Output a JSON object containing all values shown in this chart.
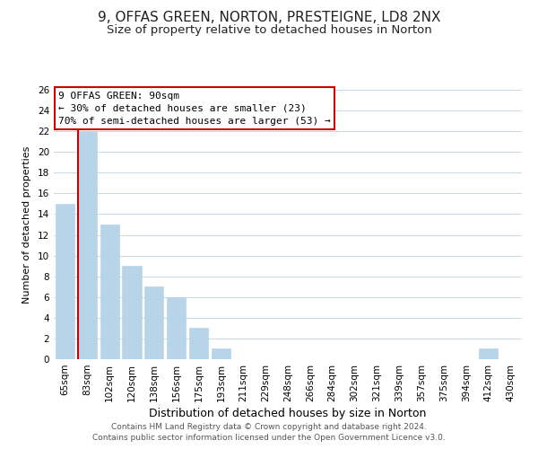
{
  "title": "9, OFFAS GREEN, NORTON, PRESTEIGNE, LD8 2NX",
  "subtitle": "Size of property relative to detached houses in Norton",
  "xlabel": "Distribution of detached houses by size in Norton",
  "ylabel": "Number of detached properties",
  "bar_labels": [
    "65sqm",
    "83sqm",
    "102sqm",
    "120sqm",
    "138sqm",
    "156sqm",
    "175sqm",
    "193sqm",
    "211sqm",
    "229sqm",
    "248sqm",
    "266sqm",
    "284sqm",
    "302sqm",
    "321sqm",
    "339sqm",
    "357sqm",
    "375sqm",
    "394sqm",
    "412sqm",
    "430sqm"
  ],
  "bar_values": [
    15,
    22,
    13,
    9,
    7,
    6,
    3,
    1,
    0,
    0,
    0,
    0,
    0,
    0,
    0,
    0,
    0,
    0,
    0,
    1,
    0
  ],
  "bar_color": "#b8d4e8",
  "bar_edge_color": "#b8d4e8",
  "vline_index": 1,
  "vline_color": "#cc0000",
  "ylim": [
    0,
    26
  ],
  "yticks": [
    0,
    2,
    4,
    6,
    8,
    10,
    12,
    14,
    16,
    18,
    20,
    22,
    24,
    26
  ],
  "annotation_title": "9 OFFAS GREEN: 90sqm",
  "annotation_line1": "← 30% of detached houses are smaller (23)",
  "annotation_line2": "70% of semi-detached houses are larger (53) →",
  "annotation_box_color": "#ffffff",
  "annotation_box_edge_color": "#cc0000",
  "footer_line1": "Contains HM Land Registry data © Crown copyright and database right 2024.",
  "footer_line2": "Contains public sector information licensed under the Open Government Licence v3.0.",
  "background_color": "#ffffff",
  "grid_color": "#c8d8e8",
  "title_fontsize": 11,
  "subtitle_fontsize": 9.5,
  "xlabel_fontsize": 9,
  "ylabel_fontsize": 8,
  "tick_fontsize": 7.5,
  "footer_fontsize": 6.5,
  "annotation_fontsize": 8
}
